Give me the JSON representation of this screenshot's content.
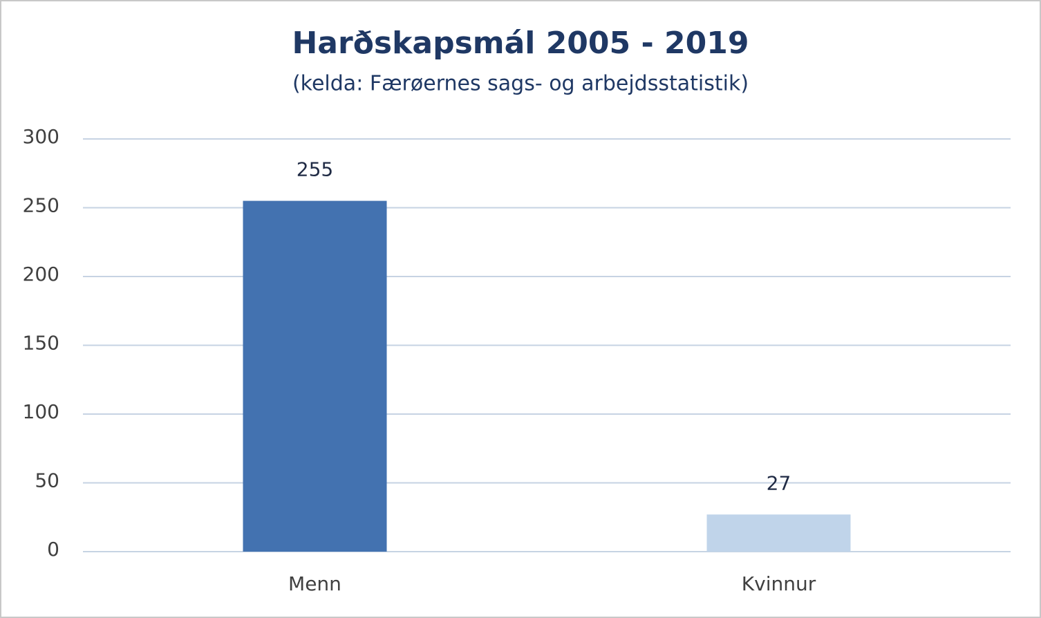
{
  "chart_data": {
    "type": "bar",
    "title": "Harðskapsmál 2005 - 2019",
    "subtitle": "(kelda: Færøernes sags- og arbejdsstatistik)",
    "categories": [
      "Menn",
      "Kvinnur"
    ],
    "values": [
      255,
      27
    ],
    "colors": [
      "#4372b0",
      "#c0d4ea"
    ],
    "ylim": [
      0,
      300
    ],
    "yticks": [
      0,
      50,
      100,
      150,
      200,
      250,
      300
    ],
    "grid": true
  }
}
